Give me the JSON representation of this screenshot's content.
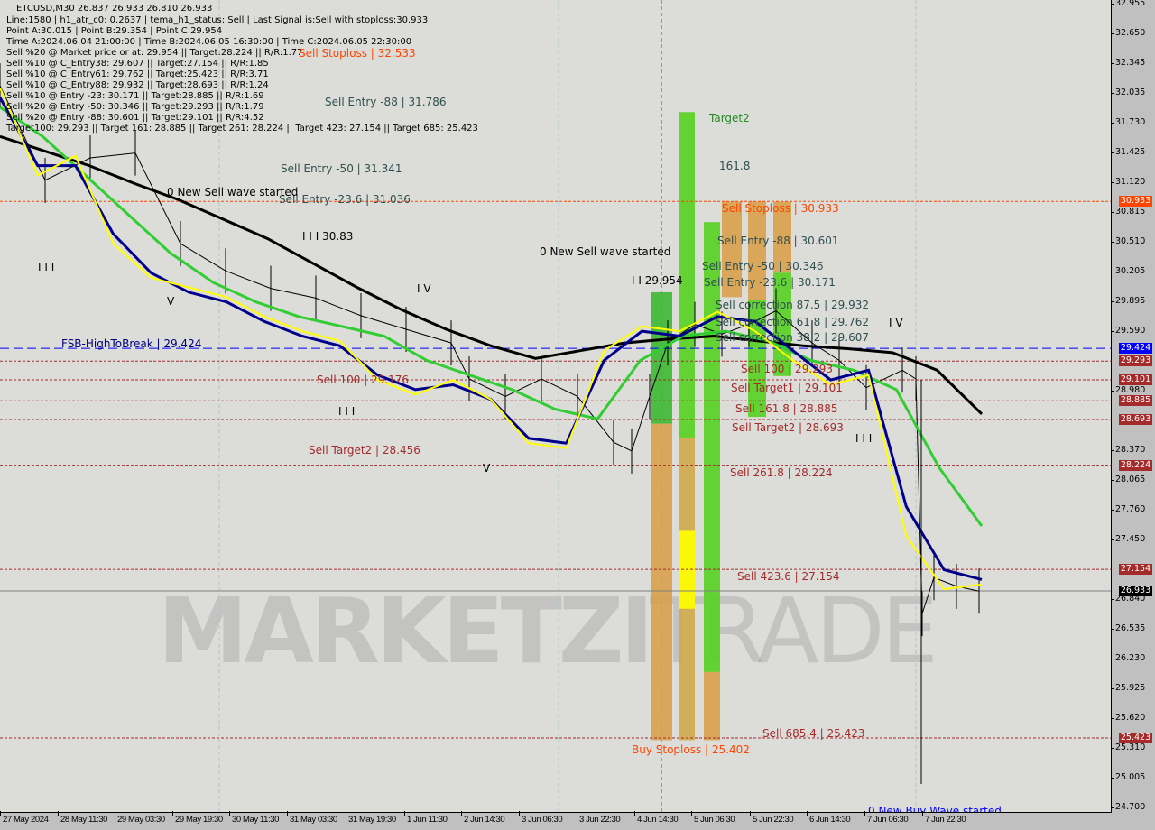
{
  "header": {
    "symbol_line": "ETCUSD,M30  26.837 26.933 26.810 26.933",
    "info_lines": [
      "Line:1580 | h1_atr_c0: 0.2637 | tema_h1_status: Sell | Last Signal is:Sell with stoploss:30.933",
      "Point A:30.015 | Point B:29.354 | Point C:29.954",
      "Time A:2024.06.04 21:00:00 | Time B:2024.06.05 16:30:00 | Time C:2024.06.05 22:30:00",
      "Sell %20 @ Market price or at: 29.954 || Target:28.224 || R/R:1.77",
      "Sell %10 @ C_Entry38: 29.607 || Target:27.154 || R/R:1.85",
      "Sell %10 @ C_Entry61: 29.762 || Target:25.423 || R/R:3.71",
      "Sell %10 @ C_Entry88: 29.932 || Target:28.693 || R/R:1.24",
      "Sell %10 @ Entry -23: 30.171 || Target:28.885 || R/R:1.69",
      "Sell %20 @ Entry -50: 30.346 || Target:29.293 || R/R:1.79",
      "Sell %20 @ Entry -88: 30.601 || Target:29.101 || R/R:4.52",
      "Target100: 29.293 || Target 161: 28.885 || Target 261: 28.224 || Target 423: 27.154 || Target 685: 25.423"
    ]
  },
  "watermark": {
    "bold": "MARKETZI",
    "thin": "TRADE"
  },
  "chart_labels": [
    {
      "text": "Sell Stoploss | 32.533",
      "color": "#ff4500"
    },
    {
      "text": "Sell Entry -88 | 31.786",
      "color": "#2f4f4f"
    },
    {
      "text": "Sell Entry -50 | 31.341",
      "color": "#2f4f4f"
    },
    {
      "text": "Sell Entry -23.6 | 31.036",
      "color": "#2f4f4f"
    },
    {
      "text": "0 New Sell wave started",
      "color": "#000000"
    },
    {
      "text": "I I I 30.83",
      "color": "#000000"
    },
    {
      "text": "FSB-HighToBreak | 29.424",
      "color": "#000080"
    },
    {
      "text": "Sell 100 | 29.176",
      "color": "#a52a2a"
    },
    {
      "text": "Sell Target2 | 28.456",
      "color": "#a52a2a"
    },
    {
      "text": "Target2",
      "color": "#228b22"
    },
    {
      "text": "161.8",
      "color": "#2f4f4f"
    },
    {
      "text": "Sell Stoploss | 30.933",
      "color": "#ff4500"
    },
    {
      "text": "Sell Entry -88 | 30.601",
      "color": "#2f4f4f"
    },
    {
      "text": "0 New Sell wave started",
      "color": "#000000"
    },
    {
      "text": "Sell Entry -50 | 30.346",
      "color": "#2f4f4f"
    },
    {
      "text": "I I 29.954",
      "color": "#000000"
    },
    {
      "text": "Sell Entry -23.6 | 30.171",
      "color": "#2f4f4f"
    },
    {
      "text": "Sell correction 87.5 | 29.932",
      "color": "#2f4f4f"
    },
    {
      "text": "Sell correction 61.8 | 29.762",
      "color": "#2f4f4f"
    },
    {
      "text": "Sell correction 38.2 | 29.607",
      "color": "#2f4f4f"
    },
    {
      "text": "Sell 100 | 29.293",
      "color": "#a52a2a"
    },
    {
      "text": "Sell Target1 | 29.101",
      "color": "#a52a2a"
    },
    {
      "text": "Sell 161.8 | 28.885",
      "color": "#a52a2a"
    },
    {
      "text": "Sell Target2 | 28.693",
      "color": "#a52a2a"
    },
    {
      "text": "Sell 261.8 | 28.224",
      "color": "#a52a2a"
    },
    {
      "text": "Sell 423.6 | 27.154",
      "color": "#a52a2a"
    },
    {
      "text": "Buy Stoploss | 25.402",
      "color": "#ff4500"
    },
    {
      "text": "Sell 685.4 | 25.423",
      "color": "#a52a2a"
    },
    {
      "text": "0 New Buy Wave started",
      "color": "#0000ff"
    },
    {
      "text": "I I I",
      "color": "#000000"
    },
    {
      "text": "V",
      "color": "#000000"
    },
    {
      "text": "I V",
      "color": "#000000"
    },
    {
      "text": "I I I",
      "color": "#000000"
    },
    {
      "text": "V",
      "color": "#000000"
    },
    {
      "text": "I V",
      "color": "#000000"
    },
    {
      "text": "I I I",
      "color": "#000000"
    }
  ],
  "chart_data": {
    "type": "line",
    "symbol": "ETCUSD",
    "timeframe": "M30",
    "ylim": [
      24.7,
      32.955
    ],
    "y_ticks": [
      "32.955",
      "32.650",
      "32.345",
      "32.035",
      "31.730",
      "31.425",
      "31.120",
      "30.815",
      "30.510",
      "30.205",
      "29.895",
      "29.590",
      "28.980",
      "28.370",
      "28.065",
      "27.760",
      "27.450",
      "26.840",
      "26.535",
      "26.230",
      "25.925",
      "25.620",
      "25.310",
      "25.005",
      "24.700"
    ],
    "x_ticks": [
      "27 May 2024",
      "28 May 11:30",
      "29 May 03:30",
      "29 May 19:30",
      "30 May 11:30",
      "31 May 03:30",
      "31 May 19:30",
      "1 Jun 11:30",
      "2 Jun 14:30",
      "3 Jun 06:30",
      "3 Jun 22:30",
      "4 Jun 14:30",
      "5 Jun 06:30",
      "5 Jun 22:30",
      "6 Jun 14:30",
      "7 Jun 06:30",
      "7 Jun 22:30"
    ],
    "price_badges": [
      {
        "value": "30.933",
        "color": "#ff4500"
      },
      {
        "value": "29.424",
        "color": "#0000ff"
      },
      {
        "value": "29.293",
        "color": "#a52a2a"
      },
      {
        "value": "29.101",
        "color": "#a52a2a"
      },
      {
        "value": "28.885",
        "color": "#a52a2a"
      },
      {
        "value": "28.693",
        "color": "#a52a2a"
      },
      {
        "value": "28.224",
        "color": "#a52a2a"
      },
      {
        "value": "27.154",
        "color": "#a52a2a"
      },
      {
        "value": "26.933",
        "color": "#000000"
      },
      {
        "value": "25.423",
        "color": "#a52a2a"
      }
    ],
    "levels": [
      {
        "price": 30.933,
        "color": "#ff4500",
        "style": "dotted"
      },
      {
        "price": 29.424,
        "color": "#0000ff",
        "style": "dashed"
      },
      {
        "price": 29.293,
        "color": "#a52a2a",
        "style": "dotted"
      },
      {
        "price": 29.101,
        "color": "#a52a2a",
        "style": "dotted"
      },
      {
        "price": 28.885,
        "color": "#a52a2a",
        "style": "dotted"
      },
      {
        "price": 28.693,
        "color": "#a52a2a",
        "style": "dotted"
      },
      {
        "price": 28.224,
        "color": "#a52a2a",
        "style": "dotted"
      },
      {
        "price": 27.154,
        "color": "#a52a2a",
        "style": "dotted"
      },
      {
        "price": 26.933,
        "color": "#808080",
        "style": "solid"
      },
      {
        "price": 25.423,
        "color": "#a52a2a",
        "style": "dotted"
      }
    ],
    "series": [
      {
        "name": "price",
        "color": "#000000",
        "values": [
          32.12,
          31.15,
          31.38,
          31.43,
          30.5,
          30.22,
          30.04,
          29.94,
          29.76,
          29.62,
          29.48,
          29.11,
          28.93,
          29.11,
          28.93,
          28.46,
          28.37,
          28.93,
          29.48,
          29.67,
          29.57,
          29.67,
          29.81,
          29.48,
          29.3,
          29.02,
          29.2,
          29.11,
          26.7,
          27.07,
          26.98,
          26.93
        ]
      },
      {
        "color": "#000000",
        "values": [
          31.6,
          31.45,
          31.3,
          31.12,
          30.95,
          30.75,
          30.55,
          30.3,
          30.05,
          29.82,
          29.62,
          29.45,
          29.32,
          29.4,
          29.48,
          29.52,
          29.55,
          29.5,
          29.45,
          29.42,
          29.38,
          29.2,
          28.75
        ]
      },
      {
        "color": "#32cd32",
        "values": [
          31.9,
          31.6,
          31.2,
          30.8,
          30.4,
          30.1,
          29.9,
          29.75,
          29.65,
          29.55,
          29.3,
          29.15,
          29.0,
          28.8,
          28.7,
          29.3,
          29.55,
          29.6,
          29.5,
          29.3,
          29.2,
          29.0,
          28.2,
          27.6
        ]
      },
      {
        "color": "#00008b",
        "values": [
          32.0,
          31.3,
          31.3,
          30.6,
          30.2,
          30.0,
          29.9,
          29.7,
          29.55,
          29.45,
          29.15,
          29.0,
          29.05,
          28.9,
          28.5,
          28.45,
          29.3,
          29.6,
          29.55,
          29.75,
          29.7,
          29.4,
          29.1,
          29.2,
          27.8,
          27.15,
          27.05
        ]
      },
      {
        "color": "#ffff00",
        "values": [
          32.1,
          31.2,
          31.4,
          30.5,
          30.15,
          30.05,
          29.95,
          29.75,
          29.6,
          29.5,
          29.1,
          28.95,
          29.1,
          28.9,
          28.45,
          28.4,
          29.4,
          29.65,
          29.6,
          29.8,
          29.6,
          29.3,
          29.05,
          29.15,
          27.5,
          26.95,
          27.0
        ]
      }
    ]
  }
}
